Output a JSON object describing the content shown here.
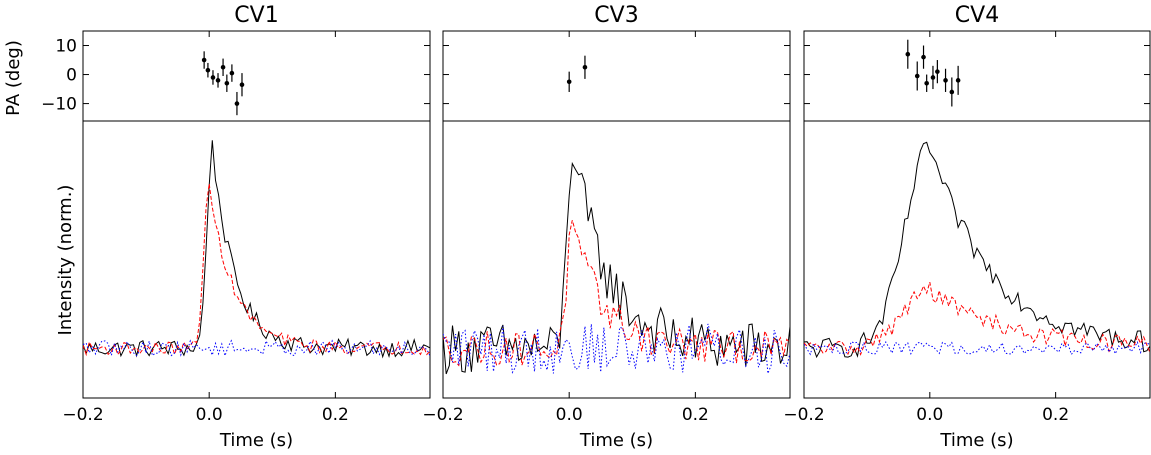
{
  "figure": {
    "ylabel_top": "PA (deg)",
    "ylabel_bottom": "Intensity (norm.)",
    "xlabel": "Time (s)",
    "colors": {
      "total": "#000000",
      "linear": "#ff0000",
      "circular": "#0000ff"
    }
  },
  "chart_data": [
    {
      "type": "line",
      "title": "CV1",
      "xlabel": "Time (s)",
      "ylabel": "Intensity (norm.)",
      "xlim": [
        -0.2,
        0.35
      ],
      "xticks": [
        "−0.2",
        "0.0",
        "0.2"
      ],
      "pa": {
        "ylabel": "PA (deg)",
        "ylim": [
          -16,
          15
        ],
        "yticks": [
          "10",
          "0",
          "−10"
        ],
        "points": [
          {
            "x": -0.008,
            "y": 5,
            "err": 3
          },
          {
            "x": -0.002,
            "y": 1.5,
            "err": 2.5
          },
          {
            "x": 0.006,
            "y": -1,
            "err": 2.5
          },
          {
            "x": 0.014,
            "y": -2,
            "err": 2.5
          },
          {
            "x": 0.022,
            "y": 2.5,
            "err": 3
          },
          {
            "x": 0.028,
            "y": -3,
            "err": 3
          },
          {
            "x": 0.036,
            "y": 0.5,
            "err": 3
          },
          {
            "x": 0.044,
            "y": -10,
            "err": 4
          },
          {
            "x": 0.052,
            "y": -3.5,
            "err": 4
          }
        ]
      },
      "series": [
        {
          "name": "",
          "color": "#000000",
          "style": "solid",
          "profile": {
            "peak_t": 0.005,
            "peak": 0.93,
            "rise": 0.012,
            "decay": 0.035
          },
          "noise": 0.04,
          "base": 0.02
        },
        {
          "name": "",
          "color": "#ff0000",
          "style": "dashed",
          "profile": {
            "peak_t": 0.0,
            "peak": 0.74,
            "rise": 0.012,
            "decay": 0.04
          },
          "noise": 0.03,
          "base": 0.04
        },
        {
          "name": "",
          "color": "#0000ff",
          "style": "dotted",
          "profile": {
            "peak_t": 0.0,
            "peak": 0.0,
            "rise": 0.01,
            "decay": 0.01
          },
          "noise": 0.035,
          "base": 0.0
        }
      ]
    },
    {
      "type": "line",
      "title": "CV3",
      "xlabel": "Time (s)",
      "ylabel": "",
      "xlim": [
        -0.2,
        0.35
      ],
      "xticks": [
        "−0.2",
        "0.0",
        "0.2"
      ],
      "pa": {
        "ylim": [
          -16,
          15
        ],
        "points": [
          {
            "x": 0.0,
            "y": -2.5,
            "err": 3.5
          },
          {
            "x": 0.025,
            "y": 2.5,
            "err": 4
          }
        ]
      },
      "series": [
        {
          "name": "",
          "color": "#000000",
          "style": "solid",
          "profile": {
            "peak_t": 0.005,
            "peak": 0.93,
            "rise": 0.012,
            "decay": 0.055
          },
          "noise": 0.12,
          "base": 0.05
        },
        {
          "name": "",
          "color": "#ff0000",
          "style": "dashed",
          "profile": {
            "peak_t": 0.005,
            "peak": 0.55,
            "rise": 0.012,
            "decay": 0.05
          },
          "noise": 0.08,
          "base": 0.1
        },
        {
          "name": "",
          "color": "#0000ff",
          "style": "dotted",
          "profile": {
            "peak_t": 0.0,
            "peak": 0.0,
            "rise": 0.01,
            "decay": 0.01
          },
          "noise": 0.12,
          "base": -0.05
        }
      ]
    },
    {
      "type": "line",
      "title": "CV4",
      "xlabel": "Time (s)",
      "ylabel": "",
      "xlim": [
        -0.2,
        0.35
      ],
      "xticks": [
        "−0.2",
        "0.0",
        "0.2"
      ],
      "pa": {
        "ylim": [
          -16,
          15
        ],
        "points": [
          {
            "x": -0.035,
            "y": 7,
            "err": 5
          },
          {
            "x": -0.02,
            "y": -0.5,
            "err": 5
          },
          {
            "x": -0.01,
            "y": 6,
            "err": 4
          },
          {
            "x": -0.005,
            "y": -3,
            "err": 3
          },
          {
            "x": 0.005,
            "y": -1,
            "err": 4
          },
          {
            "x": 0.012,
            "y": 1,
            "err": 4
          },
          {
            "x": 0.025,
            "y": -2,
            "err": 4
          },
          {
            "x": 0.035,
            "y": -6,
            "err": 5
          },
          {
            "x": 0.045,
            "y": -2,
            "err": 5
          }
        ]
      },
      "series": [
        {
          "name": "",
          "color": "#000000",
          "style": "solid",
          "profile": {
            "peak_t": 0.0,
            "peak": 0.93,
            "rise": 0.055,
            "decay": 0.1
          },
          "noise": 0.05,
          "base": 0.04
        },
        {
          "name": "",
          "color": "#ff0000",
          "style": "dashed",
          "profile": {
            "peak_t": 0.0,
            "peak": 0.27,
            "rise": 0.06,
            "decay": 0.12
          },
          "noise": 0.04,
          "base": 0.03
        },
        {
          "name": "",
          "color": "#0000ff",
          "style": "dotted",
          "profile": {
            "peak_t": 0.0,
            "peak": 0.0,
            "rise": 0.01,
            "decay": 0.01
          },
          "noise": 0.03,
          "base": 0.0
        }
      ]
    }
  ]
}
